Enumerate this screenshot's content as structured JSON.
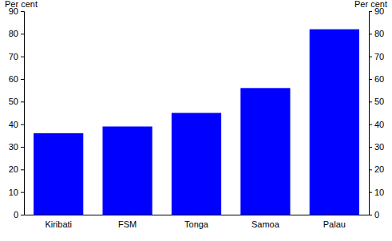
{
  "chart_data": {
    "type": "bar",
    "categories": [
      "Kiribati",
      "FSM",
      "Tonga",
      "Samoa",
      "Palau"
    ],
    "values": [
      36,
      39,
      45,
      56,
      82
    ],
    "color": "#0000ff",
    "ylabel": "Per cent",
    "y2label": "Per cent",
    "ylim": [
      0,
      90
    ],
    "yticks": [
      0,
      10,
      20,
      30,
      40,
      50,
      60,
      70,
      80,
      90
    ],
    "y2lim": [
      0,
      90
    ],
    "y2ticks": [
      0,
      10,
      20,
      30,
      40,
      50,
      60,
      70,
      80,
      90
    ],
    "grid": false
  }
}
